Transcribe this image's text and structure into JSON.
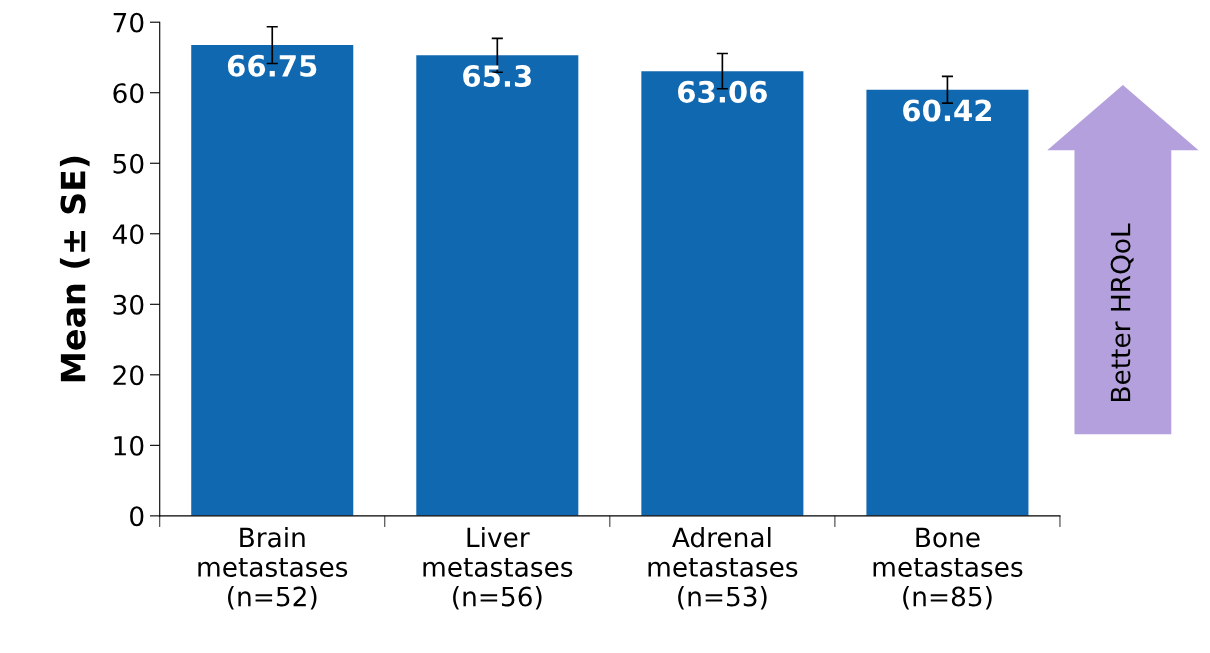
{
  "chart_data": {
    "type": "bar",
    "ylabel": "Mean (± SE)",
    "categories": [
      "Brain\nmetastases\n(n=52)",
      "Liver\nmetastases\n(n=56)",
      "Adrenal\nmetastases\n(n=53)",
      "Bone\nmetastases\n(n=85)"
    ],
    "values": [
      66.75,
      65.3,
      63.06,
      60.42
    ],
    "errors": [
      2.6,
      2.4,
      2.5,
      1.9
    ],
    "color": "#1068b0",
    "ylim": [
      0,
      70
    ],
    "yticks": [
      0,
      10,
      20,
      30,
      40,
      50,
      60,
      70
    ],
    "data_labels": true,
    "grid": false,
    "legend": false,
    "annotations": [
      "Better HRQoL"
    ]
  }
}
